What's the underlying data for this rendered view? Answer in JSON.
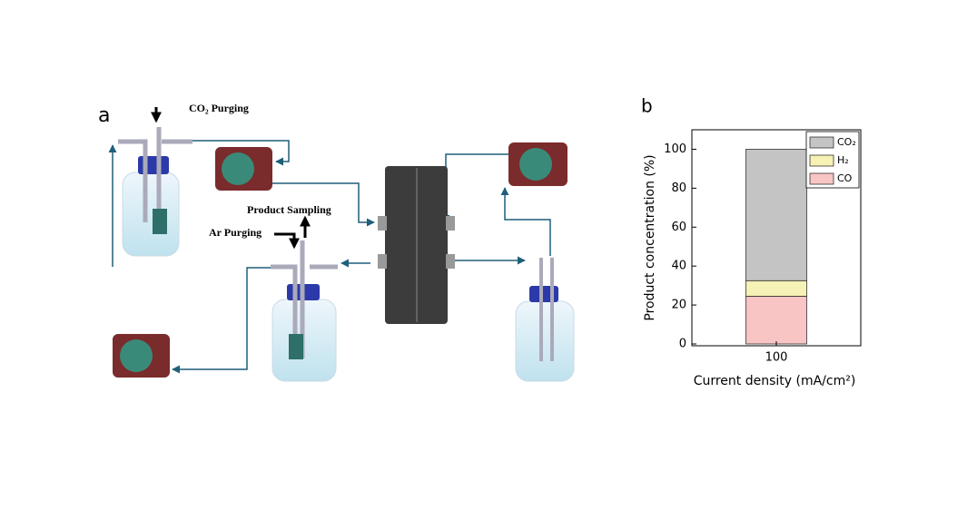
{
  "diagram": {
    "panel_a": "a",
    "co2_purging": "CO₂ Purging",
    "product_sampling": "Product Sampling",
    "ar_purging": "Ar Purging"
  },
  "chart_data": {
    "type": "stacked_bar",
    "panel_label": "b",
    "categories": [
      "100"
    ],
    "series": [
      {
        "name": "CO",
        "color": "#f8c4c4",
        "values": [
          24.5
        ]
      },
      {
        "name": "H₂",
        "color": "#f6f1b4",
        "values": [
          8
        ]
      },
      {
        "name": "CO₂",
        "color": "#c4c4c4",
        "values": [
          67.5
        ]
      }
    ],
    "x_label": "Current density (mA/cm²)",
    "y_label": "Product concentration (%)",
    "ylim": [
      0,
      110
    ],
    "yticks": [
      0,
      20,
      40,
      60,
      80,
      100
    ],
    "legend": "upper right"
  }
}
